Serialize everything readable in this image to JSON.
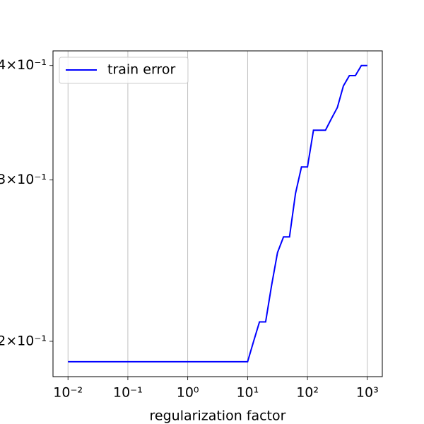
{
  "chart_data": {
    "type": "line",
    "x_label": "regularization factor",
    "x_log": true,
    "y_log": true,
    "grid": "x",
    "legend_loc": "upper left",
    "xlim": [
      0.00562,
      1778
    ],
    "ylim": [
      0.183,
      0.415
    ],
    "xticks": [
      {
        "value": 0.01,
        "label": "10⁻²"
      },
      {
        "value": 0.1,
        "label": "10⁻¹"
      },
      {
        "value": 1,
        "label": "10⁰"
      },
      {
        "value": 10,
        "label": "10¹"
      },
      {
        "value": 100,
        "label": "10²"
      },
      {
        "value": 1000,
        "label": "10³"
      }
    ],
    "yticks": [
      {
        "value": 0.2,
        "label": "2×10⁻¹"
      },
      {
        "value": 0.3,
        "label": "3×10⁻¹"
      },
      {
        "value": 0.4,
        "label": "4×10⁻¹"
      }
    ],
    "x": [
      0.01,
      0.1,
      1,
      10,
      12.6,
      15.8,
      20,
      25.1,
      31.6,
      39.8,
      50.1,
      63.1,
      79.4,
      100,
      126,
      158,
      200,
      251,
      316,
      398,
      501,
      631,
      794,
      1000
    ],
    "series": [
      {
        "name": "train error",
        "color": "#0000ff",
        "values": [
          0.19,
          0.19,
          0.19,
          0.19,
          0.2,
          0.21,
          0.21,
          0.23,
          0.25,
          0.26,
          0.26,
          0.29,
          0.31,
          0.31,
          0.34,
          0.34,
          0.34,
          0.35,
          0.36,
          0.38,
          0.39,
          0.39,
          0.4,
          0.4
        ]
      }
    ]
  }
}
